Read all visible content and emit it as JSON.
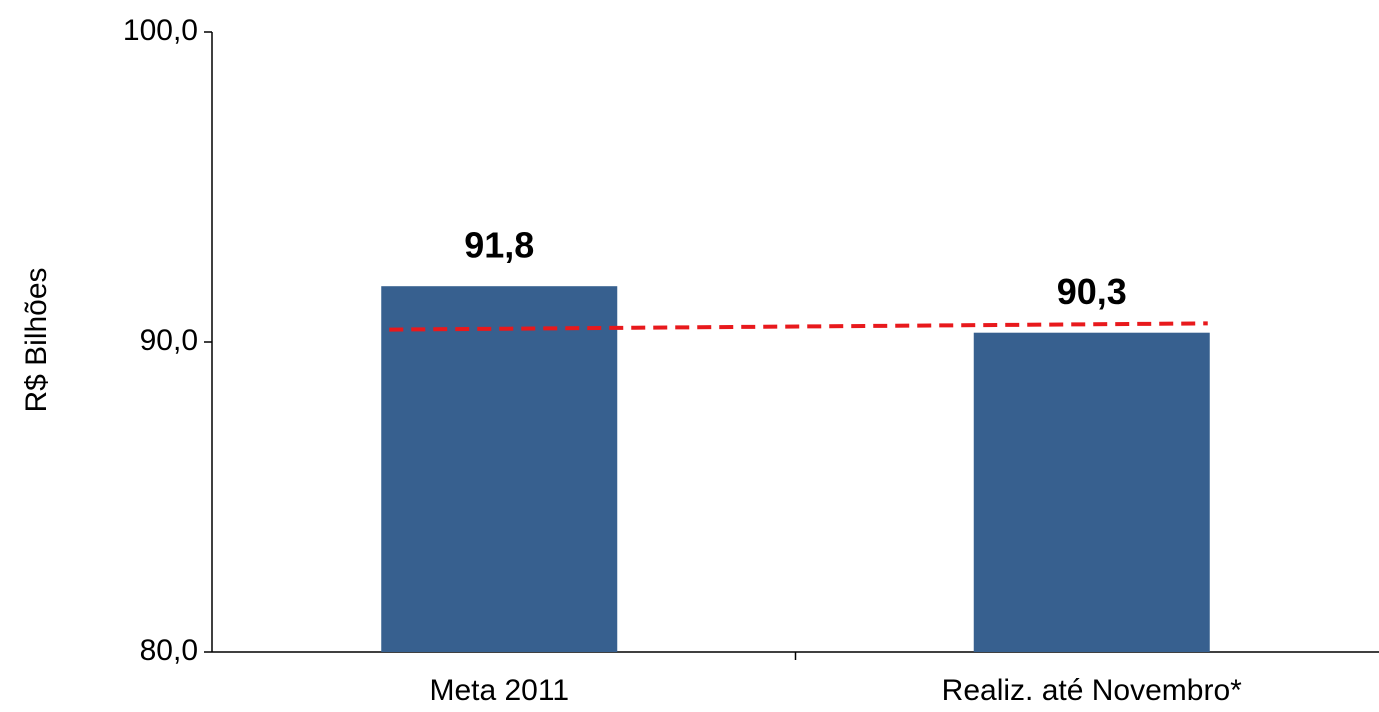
{
  "chart_data": {
    "type": "bar",
    "y_label": "R$ Bilhões",
    "categories": [
      "Meta 2011",
      "Realiz. até Novembro*"
    ],
    "values": [
      91.8,
      90.3
    ],
    "value_labels": [
      "91,8",
      "90,3"
    ],
    "color": "#37608f",
    "ylim": [
      80,
      100
    ],
    "yticks": [
      {
        "value": 80,
        "label": "80,0"
      },
      {
        "value": 90,
        "label": "90,0"
      },
      {
        "value": 100,
        "label": "100,0"
      }
    ],
    "trend_line": {
      "values": [
        90.4,
        90.6
      ],
      "color": "#e8191c"
    }
  }
}
